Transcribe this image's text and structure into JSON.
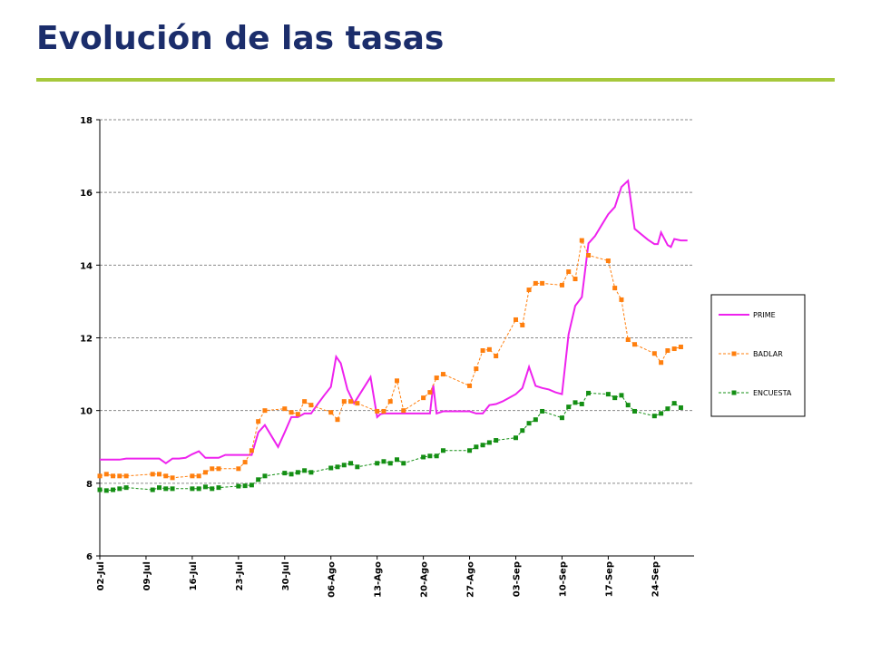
{
  "slide": {
    "title": "Evolución de las tasas"
  },
  "colors": {
    "title": "#1b2d6b",
    "rule": "#a6c83b",
    "prime": "#ee22ee",
    "badlar": "#ff7f0e",
    "encuesta": "#148f14"
  },
  "chart_data": {
    "type": "line",
    "title": "",
    "xlabel": "",
    "ylabel": "",
    "ylim": [
      6,
      18
    ],
    "yticks": [
      6,
      8,
      10,
      12,
      14,
      16,
      18
    ],
    "xlim": [
      0,
      90
    ],
    "xticks": [
      {
        "x": 0,
        "label": "02-Jul"
      },
      {
        "x": 7,
        "label": "09-Jul"
      },
      {
        "x": 14,
        "label": "16-Jul"
      },
      {
        "x": 21,
        "label": "23-Jul"
      },
      {
        "x": 28,
        "label": "30-Jul"
      },
      {
        "x": 35,
        "label": "06-Ago"
      },
      {
        "x": 42,
        "label": "13-Ago"
      },
      {
        "x": 49,
        "label": "20-Ago"
      },
      {
        "x": 56,
        "label": "27-Ago"
      },
      {
        "x": 63,
        "label": "03-Sep"
      },
      {
        "x": 70,
        "label": "10-Sep"
      },
      {
        "x": 77,
        "label": "17-Sep"
      },
      {
        "x": 84,
        "label": "24-Sep"
      }
    ],
    "grid": true,
    "legend": "right",
    "series": [
      {
        "name": "PRIME",
        "style": "solid",
        "x": [
          0,
          1,
          2,
          3,
          4,
          5,
          6,
          7,
          8,
          9,
          10,
          11,
          12,
          13,
          14,
          15,
          16,
          17,
          18,
          19,
          20,
          21,
          22,
          23,
          24,
          25,
          27,
          28,
          29,
          30,
          31,
          32,
          33,
          34,
          35,
          35.8,
          36.5,
          37.5,
          38.5,
          41,
          42,
          42.5,
          43,
          44,
          46,
          47,
          48,
          49,
          50,
          50.5,
          51,
          52,
          53,
          54,
          55,
          56,
          57,
          58,
          59,
          60,
          61,
          62,
          63,
          64,
          65,
          66,
          67,
          68,
          69,
          70,
          71,
          72,
          73,
          74,
          75,
          76,
          77,
          78,
          79,
          80,
          81,
          82,
          83,
          84,
          84.5,
          85,
          86,
          86.5,
          87,
          88,
          89
        ],
        "y": [
          8.65,
          8.65,
          8.65,
          8.65,
          8.68,
          8.68,
          8.68,
          8.68,
          8.68,
          8.68,
          8.55,
          8.68,
          8.68,
          8.7,
          8.8,
          8.88,
          8.7,
          8.7,
          8.7,
          8.78,
          8.78,
          8.78,
          8.78,
          8.78,
          9.4,
          9.6,
          9.0,
          9.4,
          9.82,
          9.82,
          9.92,
          9.92,
          10.18,
          10.42,
          10.65,
          11.48,
          11.3,
          10.58,
          10.2,
          10.92,
          9.82,
          9.9,
          9.92,
          9.92,
          9.92,
          9.92,
          9.92,
          9.92,
          9.92,
          10.7,
          9.92,
          9.98,
          9.98,
          9.98,
          9.98,
          9.98,
          9.92,
          9.92,
          10.15,
          10.18,
          10.25,
          10.35,
          10.45,
          10.62,
          11.2,
          10.68,
          10.62,
          10.58,
          10.5,
          10.45,
          12.1,
          12.88,
          13.12,
          14.6,
          14.8,
          15.1,
          15.4,
          15.6,
          16.15,
          16.32,
          15.0,
          14.85,
          14.7,
          14.58,
          14.58,
          14.9,
          14.55,
          14.5,
          14.72,
          14.68,
          14.68
        ]
      },
      {
        "name": "BADLAR",
        "style": "dashed-square",
        "x": [
          0,
          1,
          2,
          3,
          4,
          8,
          9,
          10,
          11,
          14,
          15,
          16,
          17,
          18,
          21,
          22,
          23,
          24,
          25,
          28,
          29,
          30,
          31,
          32,
          35,
          36,
          37,
          38,
          39,
          42,
          43,
          44,
          45,
          46,
          49,
          50,
          51,
          52,
          56,
          57,
          58,
          59,
          60,
          63,
          64,
          65,
          66,
          67,
          70,
          71,
          72,
          73,
          74,
          77,
          78,
          79,
          80,
          81,
          84,
          85,
          86,
          87,
          88
        ],
        "y": [
          8.2,
          8.25,
          8.2,
          8.2,
          8.2,
          8.25,
          8.25,
          8.2,
          8.15,
          8.2,
          8.2,
          8.3,
          8.4,
          8.4,
          8.4,
          8.58,
          8.9,
          9.7,
          10.0,
          10.05,
          9.95,
          9.9,
          10.25,
          10.15,
          9.95,
          9.75,
          10.25,
          10.25,
          10.2,
          9.98,
          9.98,
          10.25,
          10.82,
          10.0,
          10.35,
          10.5,
          10.9,
          11.0,
          10.68,
          11.15,
          11.65,
          11.68,
          11.5,
          12.5,
          12.35,
          13.32,
          13.5,
          13.5,
          13.45,
          13.82,
          13.62,
          14.68,
          14.27,
          14.12,
          13.37,
          13.05,
          11.95,
          11.82,
          11.57,
          11.32,
          11.65,
          11.7,
          11.75
        ]
      },
      {
        "name": "ENCUESTA",
        "style": "dashed-square",
        "x": [
          0,
          1,
          2,
          3,
          4,
          8,
          9,
          10,
          11,
          14,
          15,
          16,
          17,
          18,
          21,
          22,
          23,
          24,
          25,
          28,
          29,
          30,
          31,
          32,
          35,
          36,
          37,
          38,
          39,
          42,
          43,
          44,
          45,
          46,
          49,
          50,
          51,
          52,
          56,
          57,
          58,
          59,
          60,
          63,
          64,
          65,
          66,
          67,
          70,
          71,
          72,
          73,
          74,
          77,
          78,
          79,
          80,
          81,
          84,
          85,
          86,
          87,
          88
        ],
        "y": [
          7.82,
          7.8,
          7.82,
          7.85,
          7.88,
          7.82,
          7.88,
          7.85,
          7.85,
          7.85,
          7.85,
          7.9,
          7.85,
          7.88,
          7.92,
          7.93,
          7.95,
          8.1,
          8.2,
          8.28,
          8.25,
          8.3,
          8.35,
          8.3,
          8.42,
          8.45,
          8.5,
          8.55,
          8.45,
          8.55,
          8.6,
          8.55,
          8.65,
          8.55,
          8.72,
          8.75,
          8.75,
          8.9,
          8.9,
          9.0,
          9.05,
          9.12,
          9.18,
          9.25,
          9.45,
          9.65,
          9.75,
          9.98,
          9.8,
          10.1,
          10.22,
          10.18,
          10.48,
          10.45,
          10.35,
          10.42,
          10.15,
          9.98,
          9.85,
          9.92,
          10.05,
          10.2,
          10.08
        ]
      }
    ]
  }
}
